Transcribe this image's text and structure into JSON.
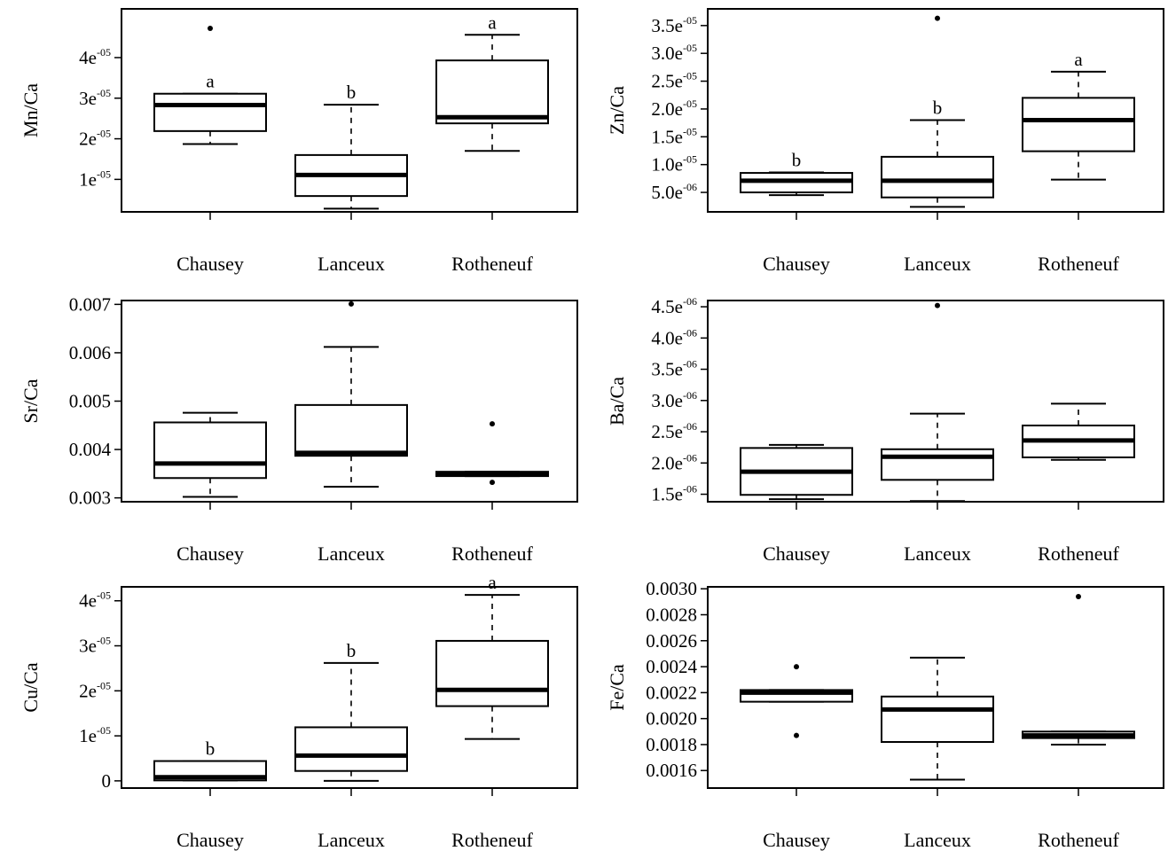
{
  "chart_data": [
    {
      "type": "box",
      "ylabel": "Mn/Ca",
      "categories": [
        "Chausey",
        "Lanceux",
        "Rotheneuf"
      ],
      "ylim": [
        2e-06,
        5.2e-05
      ],
      "yticks": [
        {
          "value": 1e-05,
          "mant": "1e",
          "exp": "-05"
        },
        {
          "value": 2e-05,
          "mant": "2e",
          "exp": "-05"
        },
        {
          "value": 3e-05,
          "mant": "3e",
          "exp": "-05"
        },
        {
          "value": 4e-05,
          "mant": "4e",
          "exp": "-05"
        }
      ],
      "boxes": [
        {
          "category": "Chausey",
          "min": 1.87e-05,
          "q1": 2.19e-05,
          "median": 2.83e-05,
          "q3": 3.11e-05,
          "max": 3.11e-05,
          "whisker_low": 1.87e-05,
          "whisker_high": 3.11e-05,
          "outliers": [
            4.72e-05
          ],
          "letter": "a"
        },
        {
          "category": "Lanceux",
          "min": 2.8e-06,
          "q1": 5.9e-06,
          "median": 1.11e-05,
          "q3": 1.6e-05,
          "max": 2.84e-05,
          "whisker_low": 2.8e-06,
          "whisker_high": 2.84e-05,
          "outliers": [],
          "letter": "b"
        },
        {
          "category": "Rotheneuf",
          "min": 1.7e-05,
          "q1": 2.38e-05,
          "median": 2.53e-05,
          "q3": 3.93e-05,
          "max": 4.56e-05,
          "whisker_low": 1.7e-05,
          "whisker_high": 4.56e-05,
          "outliers": [],
          "letter": "a"
        }
      ]
    },
    {
      "type": "box",
      "ylabel": "Zn/Ca",
      "categories": [
        "Chausey",
        "Lanceux",
        "Rotheneuf"
      ],
      "ylim": [
        1.5e-06,
        3.8e-05
      ],
      "yticks": [
        {
          "value": 5e-06,
          "mant": "5.0e",
          "exp": "-06"
        },
        {
          "value": 1e-05,
          "mant": "1.0e",
          "exp": "-05"
        },
        {
          "value": 1.5e-05,
          "mant": "1.5e",
          "exp": "-05"
        },
        {
          "value": 2e-05,
          "mant": "2.0e",
          "exp": "-05"
        },
        {
          "value": 2.5e-05,
          "mant": "2.5e",
          "exp": "-05"
        },
        {
          "value": 3e-05,
          "mant": "3.0e",
          "exp": "-05"
        },
        {
          "value": 3.5e-05,
          "mant": "3.5e",
          "exp": "-05"
        }
      ],
      "boxes": [
        {
          "category": "Chausey",
          "q1": 5e-06,
          "median": 7.1e-06,
          "q3": 8.5e-06,
          "whisker_low": 4.5e-06,
          "whisker_high": 8.6e-06,
          "outliers": [],
          "letter": "b"
        },
        {
          "category": "Lanceux",
          "q1": 4.1e-06,
          "median": 7.1e-06,
          "q3": 1.14e-05,
          "whisker_low": 2.4e-06,
          "whisker_high": 1.8e-05,
          "outliers": [
            3.63e-05
          ],
          "letter": "b"
        },
        {
          "category": "Rotheneuf",
          "q1": 1.24e-05,
          "median": 1.8e-05,
          "q3": 2.2e-05,
          "whisker_low": 7.3e-06,
          "whisker_high": 2.67e-05,
          "outliers": [],
          "letter": "a"
        }
      ]
    },
    {
      "type": "box",
      "ylabel": "Sr/Ca",
      "categories": [
        "Chausey",
        "Lanceux",
        "Rotheneuf"
      ],
      "ylim": [
        0.00292,
        0.00708
      ],
      "yticks": [
        {
          "value": 0.003,
          "label": "0.003"
        },
        {
          "value": 0.004,
          "label": "0.004"
        },
        {
          "value": 0.005,
          "label": "0.005"
        },
        {
          "value": 0.006,
          "label": "0.006"
        },
        {
          "value": 0.007,
          "label": "0.007"
        }
      ],
      "boxes": [
        {
          "category": "Chausey",
          "q1": 0.00341,
          "median": 0.00371,
          "q3": 0.00456,
          "whisker_low": 0.00302,
          "whisker_high": 0.00476,
          "outliers": []
        },
        {
          "category": "Lanceux",
          "q1": 0.00387,
          "median": 0.00393,
          "q3": 0.00492,
          "whisker_low": 0.00323,
          "whisker_high": 0.00612,
          "outliers": [
            0.00701
          ]
        },
        {
          "category": "Rotheneuf",
          "q1": 0.00345,
          "median": 0.0035,
          "q3": 0.00354,
          "whisker_low": 0.00345,
          "whisker_high": 0.00354,
          "outliers": [
            0.00453,
            0.00332
          ]
        }
      ]
    },
    {
      "type": "box",
      "ylabel": "Ba/Ca",
      "categories": [
        "Chausey",
        "Lanceux",
        "Rotheneuf"
      ],
      "ylim": [
        1.38e-06,
        4.6e-06
      ],
      "yticks": [
        {
          "value": 1.5e-06,
          "mant": "1.5e",
          "exp": "-06"
        },
        {
          "value": 2e-06,
          "mant": "2.0e",
          "exp": "-06"
        },
        {
          "value": 2.5e-06,
          "mant": "2.5e",
          "exp": "-06"
        },
        {
          "value": 3e-06,
          "mant": "3.0e",
          "exp": "-06"
        },
        {
          "value": 3.5e-06,
          "mant": "3.5e",
          "exp": "-06"
        },
        {
          "value": 4e-06,
          "mant": "4.0e",
          "exp": "-06"
        },
        {
          "value": 4.5e-06,
          "mant": "4.5e",
          "exp": "-06"
        }
      ],
      "boxes": [
        {
          "category": "Chausey",
          "q1": 1.49e-06,
          "median": 1.86e-06,
          "q3": 2.24e-06,
          "whisker_low": 1.42e-06,
          "whisker_high": 2.29e-06,
          "outliers": []
        },
        {
          "category": "Lanceux",
          "q1": 1.73e-06,
          "median": 2.1e-06,
          "q3": 2.22e-06,
          "whisker_low": 1.39e-06,
          "whisker_high": 2.79e-06,
          "outliers": [
            4.52e-06
          ]
        },
        {
          "category": "Rotheneuf",
          "q1": 2.09e-06,
          "median": 2.36e-06,
          "q3": 2.6e-06,
          "whisker_low": 2.05e-06,
          "whisker_high": 2.95e-06,
          "outliers": []
        }
      ]
    },
    {
      "type": "box",
      "ylabel": "Cu/Ca",
      "categories": [
        "Chausey",
        "Lanceux",
        "Rotheneuf"
      ],
      "ylim": [
        -1.6e-06,
        4.31e-05
      ],
      "yticks": [
        {
          "value": 0,
          "label": "0"
        },
        {
          "value": 1e-05,
          "mant": "1e",
          "exp": "-05"
        },
        {
          "value": 2e-05,
          "mant": "2e",
          "exp": "-05"
        },
        {
          "value": 3e-05,
          "mant": "3e",
          "exp": "-05"
        },
        {
          "value": 4e-05,
          "mant": "4e",
          "exp": "-05"
        }
      ],
      "boxes": [
        {
          "category": "Chausey",
          "q1": 1e-07,
          "median": 8e-07,
          "q3": 4.4e-06,
          "whisker_low": 1e-07,
          "whisker_high": 4.4e-06,
          "outliers": [],
          "letter": "b"
        },
        {
          "category": "Lanceux",
          "q1": 2.2e-06,
          "median": 5.6e-06,
          "q3": 1.19e-05,
          "whisker_low": 0.0,
          "whisker_high": 2.62e-05,
          "outliers": [],
          "letter": "b"
        },
        {
          "category": "Rotheneuf",
          "q1": 1.66e-05,
          "median": 2.02e-05,
          "q3": 3.11e-05,
          "whisker_low": 9.3e-06,
          "whisker_high": 4.13e-05,
          "outliers": [],
          "letter": "a"
        }
      ]
    },
    {
      "type": "box",
      "ylabel": "Fe/Ca",
      "categories": [
        "Chausey",
        "Lanceux",
        "Rotheneuf"
      ],
      "ylim": [
        0.001465,
        0.003015
      ],
      "yticks": [
        {
          "value": 0.0016,
          "label": "0.0016"
        },
        {
          "value": 0.0018,
          "label": "0.0018"
        },
        {
          "value": 0.002,
          "label": "0.0020"
        },
        {
          "value": 0.0022,
          "label": "0.0022"
        },
        {
          "value": 0.0024,
          "label": "0.0024"
        },
        {
          "value": 0.0026,
          "label": "0.0026"
        },
        {
          "value": 0.0028,
          "label": "0.0028"
        },
        {
          "value": 0.003,
          "label": "0.0030"
        }
      ],
      "boxes": [
        {
          "category": "Chausey",
          "q1": 0.00213,
          "median": 0.0022,
          "q3": 0.00222,
          "whisker_low": 0.00213,
          "whisker_high": 0.00222,
          "outliers": [
            0.0024,
            0.00187
          ]
        },
        {
          "category": "Lanceux",
          "q1": 0.00182,
          "median": 0.00207,
          "q3": 0.00217,
          "whisker_low": 0.00153,
          "whisker_high": 0.00247,
          "outliers": []
        },
        {
          "category": "Rotheneuf",
          "q1": 0.00185,
          "median": 0.00187,
          "q3": 0.0019,
          "whisker_low": 0.0018,
          "whisker_high": 0.0019,
          "outliers": [
            0.00294
          ]
        }
      ]
    }
  ]
}
